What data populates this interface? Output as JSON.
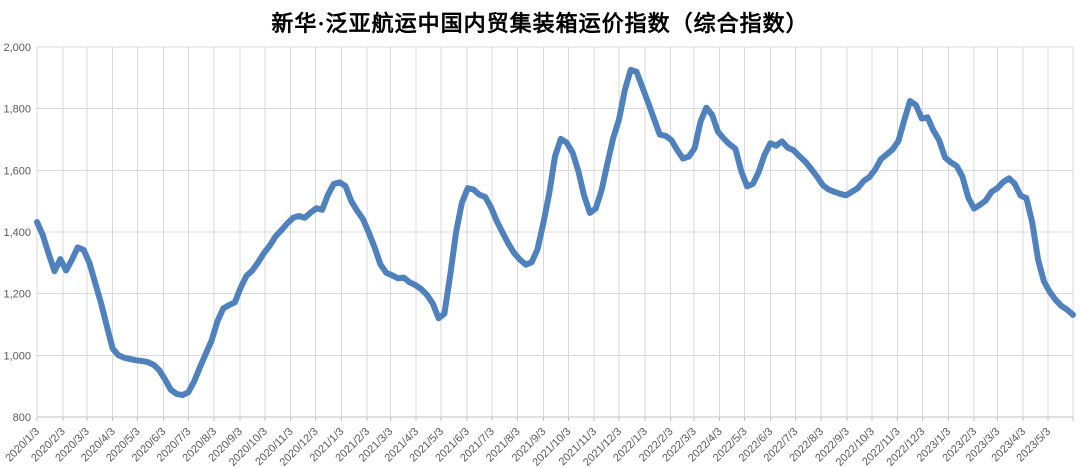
{
  "chart_data": {
    "type": "line",
    "title": "新华·泛亚航运中国内贸集装箱运价指数（综合指数）",
    "grid": true,
    "legend": "none",
    "ylim": [
      800,
      2000
    ],
    "y_axis": {
      "min": 800,
      "max": 2000,
      "step": 200,
      "tick_labels": [
        "800",
        "1,000",
        "1,200",
        "1,400",
        "1,600",
        "1,800",
        "2,000"
      ]
    },
    "x_axis": {
      "tick_labels": [
        "2020/1/3",
        "2020/2/3",
        "2020/3/3",
        "2020/4/3",
        "2020/5/3",
        "2020/6/3",
        "2020/7/3",
        "2020/8/3",
        "2020/9/3",
        "2020/10/3",
        "2020/11/3",
        "2020/12/3",
        "2021/1/3",
        "2021/2/3",
        "2021/3/3",
        "2021/4/3",
        "2021/5/3",
        "2021/6/3",
        "2021/7/3",
        "2021/8/3",
        "2021/9/3",
        "2021/10/3",
        "2021/11/3",
        "2021/12/3",
        "2022/1/3",
        "2022/2/3",
        "2022/3/3",
        "2022/4/3",
        "2022/5/3",
        "2022/6/3",
        "2022/7/3",
        "2022/8/3",
        "2022/9/3",
        "2022/10/3",
        "2022/11/3",
        "2022/12/3",
        "2023/1/3",
        "2023/2/3",
        "2023/3/3",
        "2023/4/3",
        "2023/5/3"
      ],
      "label_rotation_deg": -45
    },
    "series": [
      {
        "name": "综合指数",
        "dates": [
          "2020/1/3",
          "2020/1/10",
          "2020/1/17",
          "2020/1/24",
          "2020/1/31",
          "2020/2/7",
          "2020/2/14",
          "2020/2/21",
          "2020/2/28",
          "2020/3/6",
          "2020/3/13",
          "2020/3/20",
          "2020/3/27",
          "2020/4/3",
          "2020/4/10",
          "2020/4/17",
          "2020/4/24",
          "2020/5/1",
          "2020/5/8",
          "2020/5/15",
          "2020/5/22",
          "2020/5/29",
          "2020/6/5",
          "2020/6/12",
          "2020/6/19",
          "2020/6/26",
          "2020/7/3",
          "2020/7/10",
          "2020/7/17",
          "2020/7/24",
          "2020/7/31",
          "2020/8/7",
          "2020/8/14",
          "2020/8/21",
          "2020/8/28",
          "2020/9/4",
          "2020/9/11",
          "2020/9/18",
          "2020/9/25",
          "2020/10/2",
          "2020/10/9",
          "2020/10/16",
          "2020/10/23",
          "2020/10/30",
          "2020/11/6",
          "2020/11/13",
          "2020/11/20",
          "2020/11/27",
          "2020/12/4",
          "2020/12/11",
          "2020/12/18",
          "2020/12/25",
          "2021/1/1",
          "2021/1/8",
          "2021/1/15",
          "2021/1/22",
          "2021/1/29",
          "2021/2/5",
          "2021/2/12",
          "2021/2/19",
          "2021/2/26",
          "2021/3/5",
          "2021/3/12",
          "2021/3/19",
          "2021/3/26",
          "2021/4/2",
          "2021/4/9",
          "2021/4/16",
          "2021/4/23",
          "2021/4/30",
          "2021/5/7",
          "2021/5/14",
          "2021/5/21",
          "2021/5/28",
          "2021/6/4",
          "2021/6/11",
          "2021/6/18",
          "2021/6/25",
          "2021/7/2",
          "2021/7/9",
          "2021/7/16",
          "2021/7/23",
          "2021/7/30",
          "2021/8/6",
          "2021/8/13",
          "2021/8/20",
          "2021/8/27",
          "2021/9/3",
          "2021/9/10",
          "2021/9/17",
          "2021/9/24",
          "2021/10/1",
          "2021/10/8",
          "2021/10/15",
          "2021/10/22",
          "2021/10/29",
          "2021/11/5",
          "2021/11/12",
          "2021/11/19",
          "2021/11/26",
          "2021/12/3",
          "2021/12/10",
          "2021/12/17",
          "2021/12/24",
          "2021/12/31",
          "2022/1/7",
          "2022/1/14",
          "2022/1/21",
          "2022/1/28",
          "2022/2/4",
          "2022/2/11",
          "2022/2/18",
          "2022/2/25",
          "2022/3/4",
          "2022/3/11",
          "2022/3/18",
          "2022/3/25",
          "2022/4/1",
          "2022/4/8",
          "2022/4/15",
          "2022/4/22",
          "2022/4/29",
          "2022/5/6",
          "2022/5/13",
          "2022/5/20",
          "2022/5/27",
          "2022/6/3",
          "2022/6/10",
          "2022/6/17",
          "2022/6/24",
          "2022/7/1",
          "2022/7/8",
          "2022/7/15",
          "2022/7/22",
          "2022/7/29",
          "2022/8/5",
          "2022/8/12",
          "2022/8/19",
          "2022/8/26",
          "2022/9/2",
          "2022/9/9",
          "2022/9/16",
          "2022/9/23",
          "2022/9/30",
          "2022/10/7",
          "2022/10/14",
          "2022/10/21",
          "2022/10/28",
          "2022/11/4",
          "2022/11/11",
          "2022/11/18",
          "2022/11/25",
          "2022/12/2",
          "2022/12/9",
          "2022/12/16",
          "2022/12/23",
          "2022/12/30",
          "2023/1/6",
          "2023/1/13",
          "2023/1/20",
          "2023/1/27",
          "2023/2/3",
          "2023/2/10",
          "2023/2/17",
          "2023/2/24",
          "2023/3/3",
          "2023/3/10",
          "2023/3/17",
          "2023/3/24",
          "2023/3/31",
          "2023/4/7",
          "2023/4/14",
          "2023/4/21",
          "2023/4/28",
          "2023/5/5",
          "2023/5/12",
          "2023/5/19",
          "2023/5/26",
          "2023/6/2"
        ],
        "values": [
          1432,
          1390,
          1330,
          1273,
          1312,
          1275,
          1310,
          1350,
          1342,
          1300,
          1235,
          1170,
          1095,
          1022,
          1000,
          992,
          988,
          984,
          982,
          978,
          970,
          952,
          922,
          888,
          875,
          871,
          880,
          915,
          962,
          1005,
          1048,
          1110,
          1152,
          1163,
          1172,
          1220,
          1258,
          1275,
          1302,
          1332,
          1356,
          1386,
          1406,
          1428,
          1446,
          1452,
          1446,
          1463,
          1477,
          1472,
          1521,
          1556,
          1561,
          1549,
          1500,
          1469,
          1442,
          1398,
          1350,
          1295,
          1268,
          1260,
          1250,
          1252,
          1237,
          1228,
          1215,
          1196,
          1168,
          1120,
          1135,
          1260,
          1400,
          1495,
          1542,
          1538,
          1521,
          1514,
          1480,
          1435,
          1398,
          1362,
          1331,
          1310,
          1294,
          1302,
          1344,
          1430,
          1525,
          1645,
          1702,
          1690,
          1658,
          1598,
          1518,
          1462,
          1476,
          1536,
          1622,
          1705,
          1765,
          1860,
          1926,
          1920,
          1870,
          1820,
          1768,
          1716,
          1712,
          1698,
          1666,
          1638,
          1645,
          1672,
          1758,
          1803,
          1780,
          1725,
          1703,
          1684,
          1670,
          1598,
          1548,
          1556,
          1595,
          1650,
          1688,
          1680,
          1694,
          1673,
          1665,
          1646,
          1628,
          1605,
          1580,
          1552,
          1538,
          1530,
          1524,
          1519,
          1530,
          1542,
          1565,
          1578,
          1602,
          1636,
          1652,
          1668,
          1695,
          1762,
          1825,
          1812,
          1768,
          1772,
          1730,
          1698,
          1642,
          1626,
          1614,
          1580,
          1512,
          1476,
          1488,
          1502,
          1530,
          1542,
          1562,
          1574,
          1556,
          1518,
          1510,
          1430,
          1310,
          1240,
          1206,
          1180,
          1160,
          1148,
          1131
        ]
      }
    ],
    "colors": {
      "line": "#4F81BD",
      "gridline": "#D9D9D9",
      "axis": "#BFBFBF",
      "tick_label": "#595959",
      "title": "#000000",
      "background": "#FFFFFF"
    }
  }
}
